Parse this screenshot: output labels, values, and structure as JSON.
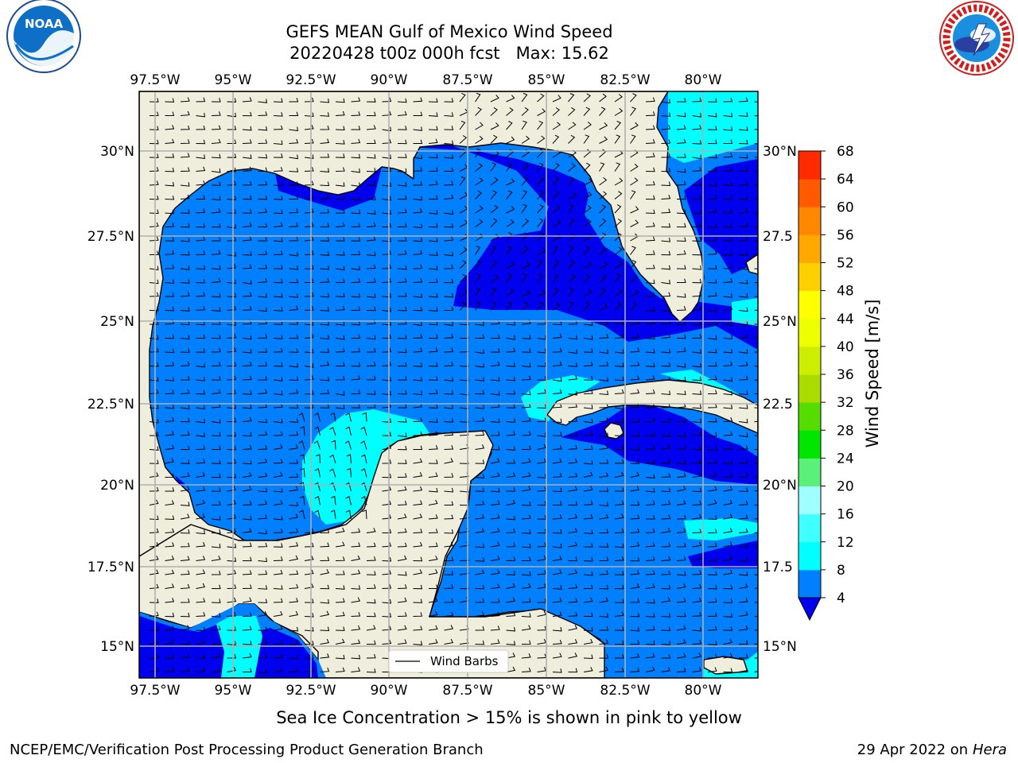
{
  "title": {
    "line1": "GEFS MEAN Gulf of Mexico Wind Speed",
    "line2": "20220428 t00z 000h fcst   Max: 15.62"
  },
  "map": {
    "lon_ticks": [
      "97.5°W",
      "95°W",
      "92.5°W",
      "90°W",
      "87.5°W",
      "85°W",
      "82.5°W",
      "80°W"
    ],
    "lat_ticks_left": [
      "30°N",
      "27.5°N",
      "25°N",
      "22.5°N",
      "20°N",
      "17.5°N",
      "15°N"
    ],
    "lat_ticks_right": [
      "30°N",
      "27.5",
      "25°N",
      "22.5",
      "20°N",
      "17.5",
      "15°N"
    ],
    "lon_range": [
      -98,
      -78.2
    ],
    "lat_range": [
      14,
      32
    ],
    "ocean_colors": {
      "4-8": "#0080ff",
      "<4": "#0000ee",
      "8-12": "#00ffff",
      "12-16": "#3cffff"
    },
    "land_color": "#efeedd",
    "legend_label": "Wind Barbs"
  },
  "colorbar": {
    "label": "Wind Speed [m/s]",
    "ticks": [
      "4",
      "8",
      "12",
      "16",
      "20",
      "24",
      "28",
      "32",
      "36",
      "40",
      "44",
      "48",
      "52",
      "56",
      "60",
      "64",
      "68"
    ],
    "colors": [
      "#0080ff",
      "#00ffff",
      "#40ffff",
      "#a0ffff",
      "#5af07a",
      "#00e600",
      "#55dc00",
      "#aadc00",
      "#ccee00",
      "#eeff00",
      "#ffff00",
      "#ffd000",
      "#ffa800",
      "#ff8800",
      "#ff5a00",
      "#ff2a00"
    ],
    "under_color": "#0000ee"
  },
  "subtitle": "Sea Ice Concentration > 15% is shown in pink to yellow",
  "footer": {
    "left": "NCEP/EMC/Verification Post Processing Product Generation Branch",
    "right_date": "29 Apr 2022 on ",
    "right_host": "Hera"
  },
  "logos": {
    "left": "noaa-logo",
    "right": "nws-logo"
  }
}
